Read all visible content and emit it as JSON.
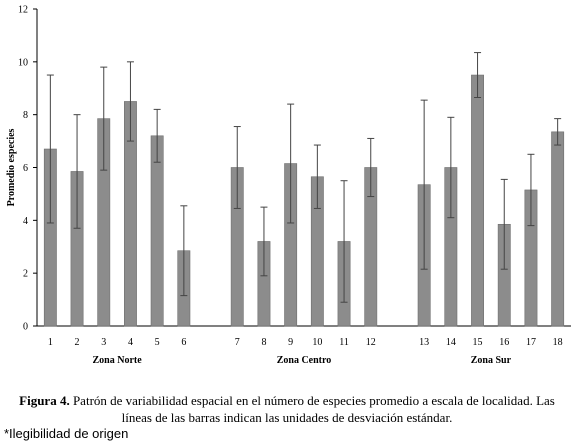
{
  "chart_data": {
    "type": "bar",
    "ylabel": "Promedio especies",
    "ylim": [
      0,
      12
    ],
    "yticks": [
      0,
      2,
      4,
      6,
      8,
      10,
      12
    ],
    "grid": false,
    "legend": "none",
    "bar_color": "#8c8c8c",
    "groups": [
      {
        "label": "Zona  Norte",
        "categories": [
          "1",
          "2",
          "3",
          "4",
          "5",
          "6"
        ],
        "values": [
          6.7,
          5.85,
          7.85,
          8.5,
          7.2,
          2.85
        ],
        "errors": [
          2.8,
          2.15,
          1.95,
          1.5,
          1.0,
          1.7
        ]
      },
      {
        "label": "Zona  Centro",
        "categories": [
          "7",
          "8",
          "9",
          "10",
          "11",
          "12"
        ],
        "values": [
          6.0,
          3.2,
          6.15,
          5.65,
          3.2,
          6.0
        ],
        "errors": [
          1.55,
          1.3,
          2.25,
          1.2,
          2.3,
          1.1
        ]
      },
      {
        "label": "Zona  Sur",
        "categories": [
          "13",
          "14",
          "15",
          "16",
          "17",
          "18"
        ],
        "values": [
          5.35,
          6.0,
          9.5,
          3.85,
          5.15,
          7.35
        ],
        "errors": [
          3.2,
          1.9,
          0.85,
          1.7,
          1.35,
          0.5
        ]
      }
    ]
  },
  "caption": {
    "label": "Figura 4.",
    "text": " Patrón de variabilidad espacial en el número de especies promedio a escala de localidad. Las líneas de las barras indican las unidades de desviación estándar."
  },
  "footnote": "*Ilegibilidad de origen"
}
